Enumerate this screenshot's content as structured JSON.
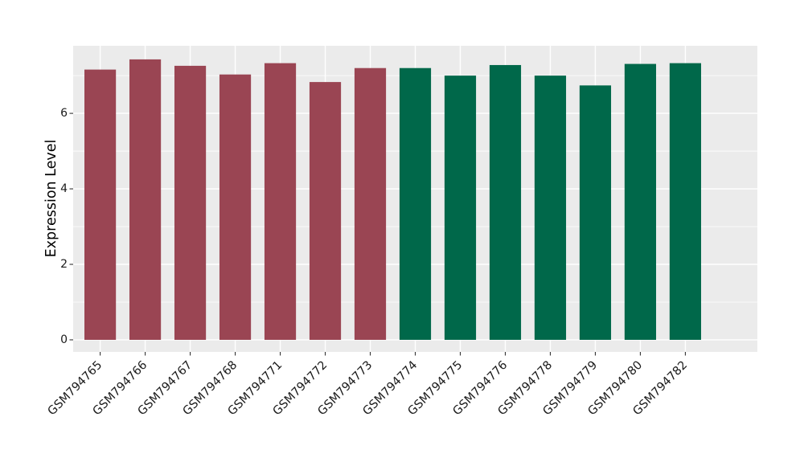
{
  "figure": {
    "background": "#FFFFFF"
  },
  "chart_data": {
    "type": "bar",
    "title": "",
    "xlabel": "",
    "ylabel": "Expression Level",
    "categories": [
      "GSM794765",
      "GSM794766",
      "GSM794767",
      "GSM794768",
      "GSM794771",
      "GSM794772",
      "GSM794773",
      "GSM794774",
      "GSM794775",
      "GSM794776",
      "GSM794778",
      "GSM794779",
      "GSM794780",
      "GSM794782"
    ],
    "values": [
      7.16,
      7.43,
      7.26,
      7.03,
      7.33,
      6.83,
      7.2,
      7.2,
      7.0,
      7.28,
      7.0,
      6.74,
      7.31,
      7.33
    ],
    "bar_colors": [
      "#9A4553",
      "#9A4553",
      "#9A4553",
      "#9A4553",
      "#9A4553",
      "#9A4553",
      "#9A4553",
      "#00684A",
      "#00684A",
      "#00684A",
      "#00684A",
      "#00684A",
      "#00684A",
      "#00684A"
    ],
    "group_colors": {
      "left_group": "#9A4553",
      "right_group": "#00684A"
    },
    "yticks": [
      0,
      2,
      4,
      6
    ],
    "ytick_labels": [
      "0",
      "2",
      "4",
      "6"
    ],
    "yticks_minor": [
      1,
      3,
      5,
      7
    ],
    "ylim": [
      -0.32,
      7.79
    ],
    "x_tick_rotation": 45,
    "grid": true,
    "legend_position": "none",
    "panel_background": "#EBEBEB",
    "gridline_color": "#FFFFFF",
    "tick_mark_color": "#333333",
    "tick_label_color": "#1A1A1A"
  }
}
